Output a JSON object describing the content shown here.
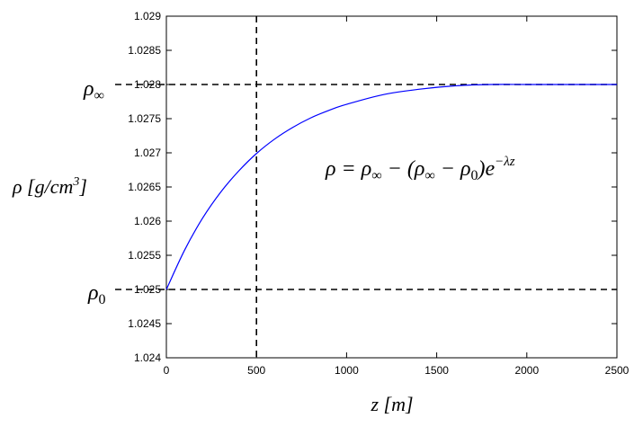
{
  "chart_data": {
    "type": "line",
    "title": "",
    "xlabel": "z [m]",
    "ylabel": "ρ [g/cm³]",
    "xlim": [
      0,
      2500
    ],
    "ylim": [
      1.024,
      1.029
    ],
    "x_ticks": [
      "0",
      "500",
      "1000",
      "1500",
      "2000",
      "2500"
    ],
    "y_ticks": [
      "1.024",
      "1.0245",
      "1.025",
      "1.0255",
      "1.026",
      "1.0265",
      "1.027",
      "1.0275",
      "1.028",
      "1.0285",
      "1.029"
    ],
    "grid": false,
    "legend": "none",
    "series": [
      {
        "color": "#0000ff",
        "x": [
          0,
          100,
          200,
          300,
          400,
          500,
          600,
          700,
          800,
          900,
          1000,
          1200,
          1400,
          1600,
          1800,
          2000,
          2200,
          2500
        ],
        "values": [
          1.025,
          1.02557,
          1.02604,
          1.02642,
          1.02673,
          1.02699,
          1.0272,
          1.02737,
          1.02751,
          1.02762,
          1.02771,
          1.02785,
          1.02793,
          1.02798,
          1.028,
          1.028,
          1.028,
          1.028
        ]
      }
    ],
    "reference_lines": [
      {
        "orientation": "horizontal",
        "value": 1.028,
        "label": "ρ∞",
        "style": "dashed"
      },
      {
        "orientation": "horizontal",
        "value": 1.025,
        "label": "ρ0",
        "style": "dashed"
      },
      {
        "orientation": "vertical",
        "value": 500,
        "style": "dashed"
      }
    ],
    "annotation": {
      "text": "ρ = ρ∞ − (ρ∞ − ρ0)e^(−λz)",
      "parts": {
        "lhs": "ρ = ρ",
        "inf1": "∞",
        "mid1": " − (ρ",
        "inf2": "∞",
        "mid2": " − ρ",
        "zero": "0",
        "mid3": ")e",
        "exp": "−λz"
      }
    },
    "labels": {
      "rho_inf_base": "ρ",
      "rho_inf_sub": "∞",
      "rho0_base": "ρ",
      "rho0_sub": "0",
      "ylabel_main": "ρ [g/cm",
      "ylabel_sup": "3",
      "ylabel_end": "]"
    },
    "colors": {
      "curve": "#0000ff",
      "axes": "#000000",
      "reference": "#000000"
    }
  }
}
